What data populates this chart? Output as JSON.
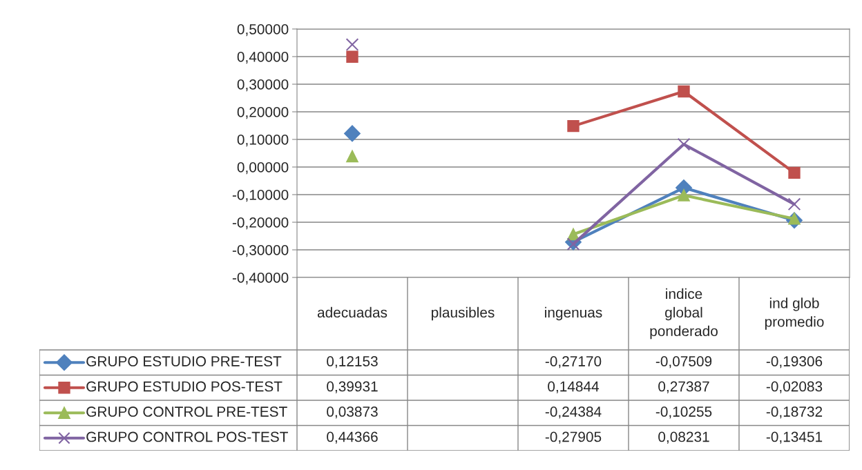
{
  "chart_data": {
    "type": "line",
    "categories": [
      "adecuadas",
      "plausibles",
      "ingenuas",
      "indice\nglobal\nponderado",
      "ind glob\npromedio"
    ],
    "series": [
      {
        "name": "GRUPO ESTUDIO PRE-TEST",
        "color": "#4f81bd",
        "marker": "diamond",
        "values": [
          0.12153,
          null,
          -0.2717,
          -0.07509,
          -0.19306
        ],
        "value_labels": [
          "0,12153",
          null,
          "-0,27170",
          "-0,07509",
          "-0,19306"
        ]
      },
      {
        "name": "GRUPO ESTUDIO POS-TEST",
        "color": "#c0504d",
        "marker": "square",
        "values": [
          0.39931,
          null,
          0.14844,
          0.27387,
          -0.02083
        ],
        "value_labels": [
          "0,39931",
          null,
          "0,14844",
          "0,27387",
          "-0,02083"
        ]
      },
      {
        "name": "GRUPO CONTROL PRE-TEST",
        "color": "#9bbb59",
        "marker": "triangle",
        "values": [
          0.03873,
          null,
          -0.24384,
          -0.10255,
          -0.18732
        ],
        "value_labels": [
          "0,03873",
          null,
          "-0,24384",
          "-0,10255",
          "-0,18732"
        ]
      },
      {
        "name": "GRUPO CONTROL POS-TEST",
        "color": "#8064a2",
        "marker": "cross",
        "values": [
          0.44366,
          null,
          -0.27905,
          0.08231,
          -0.13451
        ],
        "value_labels": [
          "0,44366",
          null,
          "-0,27905",
          "0,08231",
          "-0,13451"
        ]
      }
    ],
    "ylim": [
      -0.4,
      0.5
    ],
    "yticks": [
      {
        "value": -0.4,
        "label": "-0,40000"
      },
      {
        "value": -0.3,
        "label": "-0,30000"
      },
      {
        "value": -0.2,
        "label": "-0,20000"
      },
      {
        "value": -0.1,
        "label": "-0,10000"
      },
      {
        "value": 0,
        "label": "0,00000"
      },
      {
        "value": 0.1,
        "label": "0,10000"
      },
      {
        "value": 0.2,
        "label": "0,20000"
      },
      {
        "value": 0.3,
        "label": "0,30000"
      },
      {
        "value": 0.4,
        "label": "0,40000"
      },
      {
        "value": 0.5,
        "label": "0,50000"
      }
    ],
    "grid": "y",
    "legend": "bottom",
    "line_style": "solid"
  }
}
